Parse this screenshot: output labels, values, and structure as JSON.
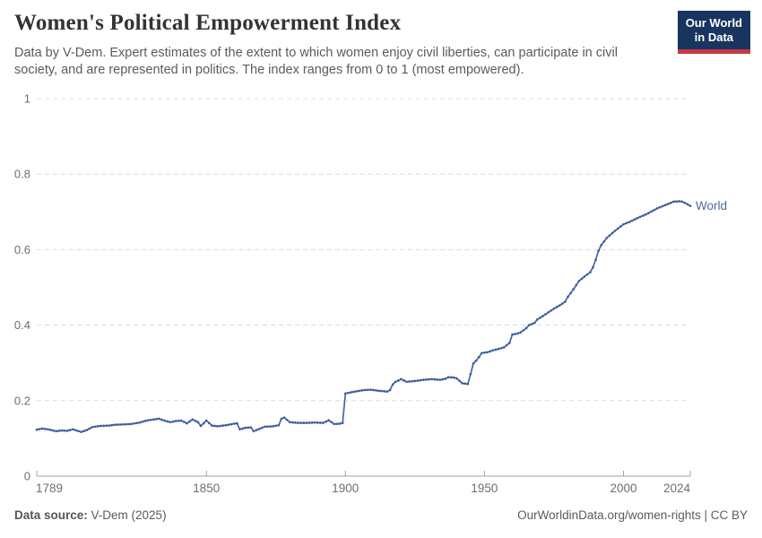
{
  "header": {
    "title": "Women's Political Empowerment Index",
    "subtitle_line1": "Data by V-Dem. Expert estimates of the extent to which women enjoy civil liberties, can participate in civil",
    "subtitle_line2": "society, and are represented in politics. The index ranges from 0 to 1 (most empowered)."
  },
  "logo": {
    "line1": "Our World",
    "line2": "in Data",
    "bg_color": "#17355f",
    "accent_color": "#c5383f"
  },
  "chart_data": {
    "type": "line",
    "title": "Women's Political Empowerment Index",
    "xlabel": "",
    "ylabel": "",
    "xlim": [
      1789,
      2024
    ],
    "ylim": [
      0,
      1
    ],
    "x_ticks": [
      1789,
      1850,
      1900,
      1950,
      2000,
      2024
    ],
    "x_tick_labels": [
      "1789",
      "1850",
      "1900",
      "1950",
      "2000",
      "2024"
    ],
    "y_ticks": [
      0,
      0.2,
      0.4,
      0.6,
      0.8,
      1
    ],
    "y_tick_labels": [
      "0",
      "0.2",
      "0.4",
      "0.6",
      "0.8",
      "1"
    ],
    "grid": "horizontal-dashed",
    "gridline_color": "#dcdcdc",
    "axis_color": "#a3a3a3",
    "tick_label_color": "#6e6e6e",
    "legend_position": "end-of-line-label",
    "end_label": "World",
    "series": [
      {
        "name": "World",
        "color": "#4566a3",
        "marker_color": "#3f5e9e",
        "points": [
          [
            1789,
            0.123
          ],
          [
            1791,
            0.126
          ],
          [
            1793,
            0.124
          ],
          [
            1796,
            0.119
          ],
          [
            1798,
            0.121
          ],
          [
            1800,
            0.12
          ],
          [
            1802,
            0.124
          ],
          [
            1805,
            0.117
          ],
          [
            1807,
            0.122
          ],
          [
            1809,
            0.13
          ],
          [
            1812,
            0.133
          ],
          [
            1815,
            0.134
          ],
          [
            1817,
            0.136
          ],
          [
            1820,
            0.137
          ],
          [
            1823,
            0.138
          ],
          [
            1826,
            0.142
          ],
          [
            1829,
            0.148
          ],
          [
            1831,
            0.15
          ],
          [
            1833,
            0.152
          ],
          [
            1835,
            0.147
          ],
          [
            1837,
            0.143
          ],
          [
            1839,
            0.146
          ],
          [
            1841,
            0.147
          ],
          [
            1843,
            0.14
          ],
          [
            1845,
            0.15
          ],
          [
            1847,
            0.143
          ],
          [
            1848,
            0.133
          ],
          [
            1850,
            0.147
          ],
          [
            1852,
            0.134
          ],
          [
            1854,
            0.132
          ],
          [
            1856,
            0.134
          ],
          [
            1858,
            0.136
          ],
          [
            1860,
            0.139
          ],
          [
            1861,
            0.14
          ],
          [
            1862,
            0.124
          ],
          [
            1864,
            0.128
          ],
          [
            1866,
            0.129
          ],
          [
            1867,
            0.119
          ],
          [
            1869,
            0.125
          ],
          [
            1871,
            0.131
          ],
          [
            1874,
            0.132
          ],
          [
            1876,
            0.135
          ],
          [
            1877,
            0.152
          ],
          [
            1878,
            0.155
          ],
          [
            1880,
            0.143
          ],
          [
            1883,
            0.141
          ],
          [
            1886,
            0.141
          ],
          [
            1889,
            0.142
          ],
          [
            1892,
            0.141
          ],
          [
            1894,
            0.148
          ],
          [
            1896,
            0.138
          ],
          [
            1898,
            0.139
          ],
          [
            1899,
            0.141
          ],
          [
            1900,
            0.219
          ],
          [
            1902,
            0.222
          ],
          [
            1905,
            0.226
          ],
          [
            1907,
            0.228
          ],
          [
            1909,
            0.229
          ],
          [
            1912,
            0.226
          ],
          [
            1915,
            0.224
          ],
          [
            1916,
            0.228
          ],
          [
            1917,
            0.243
          ],
          [
            1918,
            0.25
          ],
          [
            1919,
            0.253
          ],
          [
            1920,
            0.257
          ],
          [
            1922,
            0.25
          ],
          [
            1925,
            0.252
          ],
          [
            1928,
            0.255
          ],
          [
            1931,
            0.257
          ],
          [
            1934,
            0.255
          ],
          [
            1936,
            0.258
          ],
          [
            1937,
            0.262
          ],
          [
            1939,
            0.261
          ],
          [
            1940,
            0.259
          ],
          [
            1942,
            0.246
          ],
          [
            1944,
            0.244
          ],
          [
            1945,
            0.27
          ],
          [
            1946,
            0.298
          ],
          [
            1947,
            0.306
          ],
          [
            1948,
            0.315
          ],
          [
            1949,
            0.326
          ],
          [
            1951,
            0.328
          ],
          [
            1953,
            0.333
          ],
          [
            1955,
            0.337
          ],
          [
            1957,
            0.341
          ],
          [
            1959,
            0.353
          ],
          [
            1960,
            0.375
          ],
          [
            1962,
            0.378
          ],
          [
            1963,
            0.381
          ],
          [
            1965,
            0.392
          ],
          [
            1966,
            0.4
          ],
          [
            1968,
            0.406
          ],
          [
            1969,
            0.415
          ],
          [
            1971,
            0.424
          ],
          [
            1973,
            0.434
          ],
          [
            1975,
            0.444
          ],
          [
            1977,
            0.452
          ],
          [
            1979,
            0.462
          ],
          [
            1980,
            0.475
          ],
          [
            1982,
            0.495
          ],
          [
            1984,
            0.517
          ],
          [
            1986,
            0.529
          ],
          [
            1988,
            0.54
          ],
          [
            1989,
            0.553
          ],
          [
            1990,
            0.573
          ],
          [
            1991,
            0.597
          ],
          [
            1992,
            0.612
          ],
          [
            1994,
            0.631
          ],
          [
            1996,
            0.644
          ],
          [
            1998,
            0.656
          ],
          [
            2000,
            0.667
          ],
          [
            2002,
            0.673
          ],
          [
            2004,
            0.68
          ],
          [
            2006,
            0.687
          ],
          [
            2008,
            0.693
          ],
          [
            2010,
            0.701
          ],
          [
            2012,
            0.709
          ],
          [
            2014,
            0.715
          ],
          [
            2016,
            0.721
          ],
          [
            2018,
            0.727
          ],
          [
            2020,
            0.728
          ],
          [
            2021,
            0.727
          ],
          [
            2022,
            0.724
          ],
          [
            2023,
            0.72
          ],
          [
            2024,
            0.716
          ]
        ]
      }
    ]
  },
  "footer": {
    "source_label": "Data source:",
    "source_value": " V-Dem (2025)",
    "credit": "OurWorldinData.org/women-rights | CC BY"
  }
}
